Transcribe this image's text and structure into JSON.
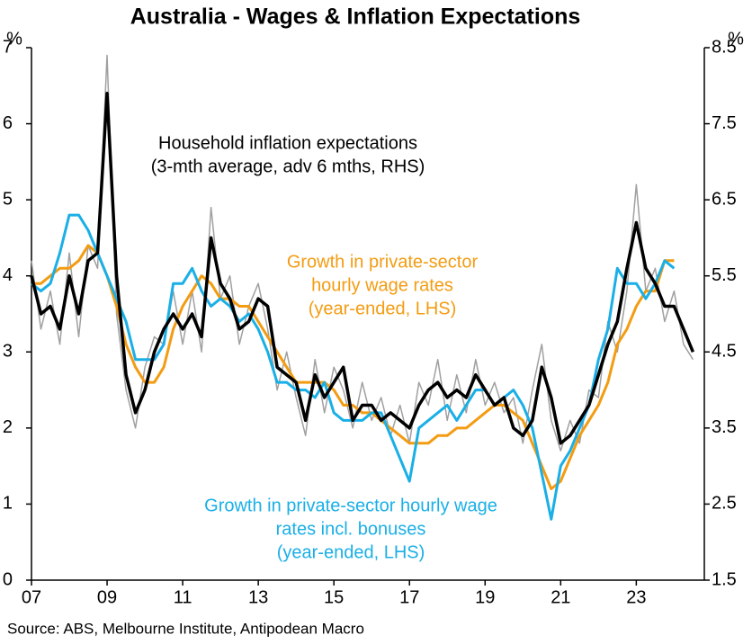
{
  "chart_data": {
    "type": "line",
    "title": "Australia - Wages & Inflation Expectations",
    "y_label": "%",
    "y2_label": "%",
    "source": "Source: ABS, Melbourne Institute, Antipodean Macro",
    "x": [
      2007,
      2007.25,
      2007.5,
      2007.75,
      2008,
      2008.25,
      2008.5,
      2008.75,
      2009,
      2009.25,
      2009.5,
      2009.75,
      2010,
      2010.25,
      2010.5,
      2010.75,
      2011,
      2011.25,
      2011.5,
      2011.75,
      2012,
      2012.25,
      2012.5,
      2012.75,
      2013,
      2013.25,
      2013.5,
      2013.75,
      2014,
      2014.25,
      2014.5,
      2014.75,
      2015,
      2015.25,
      2015.5,
      2015.75,
      2016,
      2016.25,
      2016.5,
      2016.75,
      2017,
      2017.25,
      2017.5,
      2017.75,
      2018,
      2018.25,
      2018.5,
      2018.75,
      2019,
      2019.25,
      2019.5,
      2019.75,
      2020,
      2020.25,
      2020.5,
      2020.75,
      2021,
      2021.25,
      2021.5,
      2021.75,
      2022,
      2022.25,
      2022.5,
      2022.75,
      2023,
      2023.25,
      2023.5,
      2023.75,
      2024,
      2024.25,
      2024.5
    ],
    "xlim": [
      2007,
      2024.8
    ],
    "xticks": [
      {
        "value": 2007,
        "label": "07"
      },
      {
        "value": 2009,
        "label": "09"
      },
      {
        "value": 2011,
        "label": "11"
      },
      {
        "value": 2013,
        "label": "13"
      },
      {
        "value": 2015,
        "label": "15"
      },
      {
        "value": 2017,
        "label": "17"
      },
      {
        "value": 2019,
        "label": "19"
      },
      {
        "value": 2021,
        "label": "21"
      },
      {
        "value": 2023,
        "label": "23"
      }
    ],
    "ylim": [
      0,
      7
    ],
    "yticks": [
      0,
      1,
      2,
      3,
      4,
      5,
      6,
      7
    ],
    "y2lim": [
      1.5,
      8.5
    ],
    "y2ticks": [
      1.5,
      2.5,
      3.5,
      4.5,
      5.5,
      6.5,
      7.5,
      8.5
    ],
    "series": [
      {
        "color": "#a0a0a0",
        "width": 1.5,
        "axis": "y2",
        "values": [
          5.7,
          4.8,
          5.3,
          4.6,
          5.8,
          4.7,
          5.9,
          5.6,
          8.4,
          5.0,
          4.0,
          3.5,
          4.3,
          4.7,
          4.6,
          5.3,
          4.6,
          5.3,
          4.5,
          6.4,
          5.2,
          5.5,
          4.6,
          5.1,
          5.4,
          4.8,
          4.0,
          4.5,
          3.9,
          3.4,
          4.4,
          3.7,
          4.3,
          4.0,
          3.5,
          4.1,
          3.6,
          3.9,
          3.4,
          3.8,
          3.3,
          4.1,
          3.8,
          4.4,
          3.6,
          4.2,
          3.7,
          4.4,
          3.8,
          4.1,
          3.7,
          3.9,
          3.3,
          4.0,
          4.6,
          3.6,
          3.2,
          3.6,
          3.3,
          4.0,
          3.9,
          4.9,
          4.5,
          5.3,
          6.7,
          5.3,
          5.6,
          4.9,
          5.3,
          4.6,
          4.4
        ]
      },
      {
        "color": "#f39c12",
        "width": 3,
        "axis": "y",
        "values": [
          3.9,
          3.9,
          4.0,
          4.1,
          4.1,
          4.2,
          4.4,
          4.3,
          4.0,
          3.6,
          3.1,
          2.8,
          2.6,
          2.6,
          2.8,
          3.3,
          3.6,
          3.8,
          4.0,
          3.9,
          3.7,
          3.7,
          3.6,
          3.6,
          3.4,
          3.2,
          3.0,
          2.8,
          2.6,
          2.6,
          2.6,
          2.6,
          2.5,
          2.3,
          2.3,
          2.2,
          2.2,
          2.1,
          2.0,
          1.9,
          1.8,
          1.8,
          1.8,
          1.9,
          1.9,
          2.0,
          2.0,
          2.1,
          2.2,
          2.3,
          2.3,
          2.2,
          2.1,
          1.8,
          1.5,
          1.2,
          1.3,
          1.6,
          1.9,
          2.1,
          2.3,
          2.6,
          3.1,
          3.3,
          3.6,
          3.8,
          3.8,
          4.2,
          4.2,
          null,
          null
        ]
      },
      {
        "color": "#1aafe6",
        "width": 3,
        "axis": "y",
        "values": [
          3.9,
          3.8,
          3.9,
          4.3,
          4.8,
          4.8,
          4.6,
          4.3,
          4.0,
          3.7,
          3.4,
          2.9,
          2.9,
          2.9,
          3.1,
          3.9,
          3.9,
          4.1,
          3.8,
          3.6,
          3.7,
          3.6,
          3.4,
          3.5,
          3.3,
          3.0,
          2.6,
          2.6,
          2.5,
          2.5,
          2.4,
          2.6,
          2.2,
          2.1,
          2.1,
          2.1,
          2.2,
          2.2,
          1.9,
          1.6,
          1.3,
          2.0,
          2.1,
          2.2,
          2.3,
          2.1,
          2.3,
          2.5,
          2.5,
          2.3,
          2.4,
          2.5,
          2.3,
          2.0,
          1.4,
          0.8,
          1.5,
          1.7,
          2.0,
          2.3,
          2.9,
          3.3,
          4.1,
          3.9,
          3.9,
          3.7,
          3.9,
          4.2,
          4.1,
          null,
          null
        ]
      },
      {
        "color": "#000000",
        "width": 3.5,
        "axis": "y2",
        "values": [
          5.5,
          5.0,
          5.1,
          4.8,
          5.5,
          5.0,
          5.7,
          5.8,
          7.9,
          5.5,
          4.2,
          3.7,
          4.0,
          4.5,
          4.8,
          5.0,
          4.8,
          5.0,
          4.7,
          6.0,
          5.4,
          5.2,
          4.8,
          4.9,
          5.2,
          5.1,
          4.3,
          4.2,
          4.1,
          3.6,
          4.2,
          3.9,
          4.1,
          4.3,
          3.6,
          3.8,
          3.8,
          3.6,
          3.7,
          3.6,
          3.5,
          3.8,
          4.0,
          4.1,
          3.9,
          4.0,
          3.9,
          4.2,
          4.0,
          3.8,
          3.9,
          3.5,
          3.4,
          3.6,
          4.3,
          3.9,
          3.3,
          3.4,
          3.6,
          3.8,
          4.2,
          4.6,
          4.9,
          5.6,
          6.2,
          5.6,
          5.4,
          5.1,
          5.1,
          4.8,
          4.5
        ]
      }
    ],
    "annotations": [
      {
        "color": "#000000",
        "lines": [
          "Household inflation expectations",
          "(3-mth average, adv 6 mths, RHS)"
        ]
      },
      {
        "color": "#f39c12",
        "lines": [
          "Growth in private-sector",
          "hourly wage rates",
          "(year-ended, LHS)"
        ]
      },
      {
        "color": "#1aafe6",
        "lines": [
          "Growth in private-sector hourly wage",
          "rates incl. bonuses",
          "(year-ended, LHS)"
        ]
      }
    ]
  }
}
